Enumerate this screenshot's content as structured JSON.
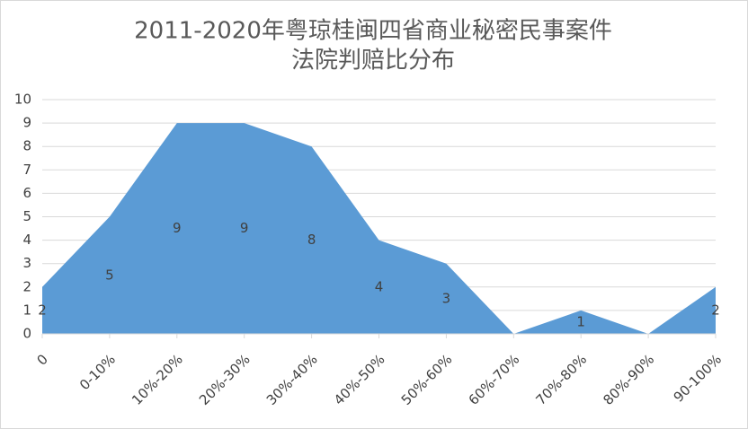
{
  "chart_data": {
    "type": "area",
    "title": [
      "2011-2020年粤琼桂闽四省商业秘密民事案件",
      "法院判赔比分布"
    ],
    "categories": [
      "0",
      "0-10%",
      "10%-20%",
      "20%-30%",
      "30%-40%",
      "40%-50%",
      "50%-60%",
      "60%-70%",
      "70%-80%",
      "80%-90%",
      "90-100%"
    ],
    "values": [
      2,
      5,
      9,
      9,
      8,
      4,
      3,
      0,
      1,
      0,
      2
    ],
    "value_labels": [
      "2",
      "5",
      "9",
      "9",
      "8",
      "4",
      "3",
      null,
      "1",
      null,
      "2"
    ],
    "color": "#5b9bd5",
    "ylim": [
      0,
      10
    ],
    "yticks": [
      0,
      1,
      2,
      3,
      4,
      5,
      6,
      7,
      8,
      9,
      10
    ],
    "grid": true
  }
}
